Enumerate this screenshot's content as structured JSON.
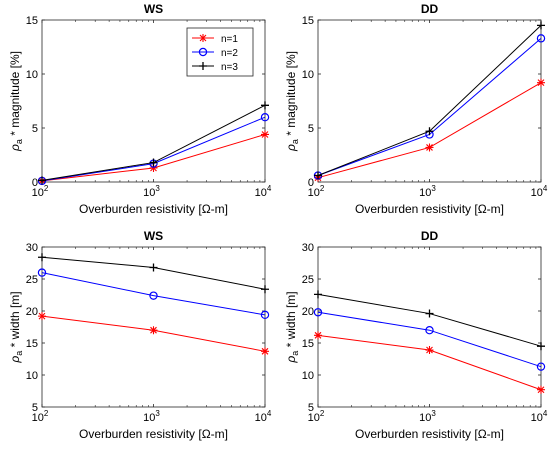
{
  "colors": {
    "n1": "#ff0000",
    "n2": "#0000ff",
    "n3": "#000000"
  },
  "legend": {
    "location": "top-right (first panel)"
  },
  "chart_data": [
    {
      "type": "line",
      "title": "WS",
      "xlabel": "Overburden resistivity [Ω-m]",
      "ylabel": "* magnitude [%]",
      "xscale": "log",
      "xlim": [
        100,
        10000
      ],
      "ylim": [
        0,
        15
      ],
      "yticks": [
        0,
        5,
        10,
        15
      ],
      "xticks": [
        {
          "base": "10",
          "exp": "2",
          "value": 100
        },
        {
          "base": "10",
          "exp": "3",
          "value": 1000
        },
        {
          "base": "10",
          "exp": "4",
          "value": 10000
        }
      ],
      "x": [
        100,
        1000,
        10000
      ],
      "series": [
        {
          "name": "n=1",
          "marker": "asterisk",
          "values": [
            0.1,
            1.3,
            4.4
          ]
        },
        {
          "name": "n=2",
          "marker": "circle",
          "values": [
            0.1,
            1.7,
            6.0
          ]
        },
        {
          "name": "n=3",
          "marker": "plus",
          "values": [
            0.15,
            1.8,
            7.1
          ]
        }
      ]
    },
    {
      "type": "line",
      "title": "DD",
      "xlabel": "Overburden resistivity [Ω-m]",
      "ylabel": "* magnitude [%]",
      "xscale": "log",
      "xlim": [
        100,
        10000
      ],
      "ylim": [
        0,
        15
      ],
      "yticks": [
        0,
        5,
        10,
        15
      ],
      "xticks": [
        {
          "base": "10",
          "exp": "2",
          "value": 100
        },
        {
          "base": "10",
          "exp": "3",
          "value": 1000
        },
        {
          "base": "10",
          "exp": "4",
          "value": 10000
        }
      ],
      "x": [
        100,
        1000,
        10000
      ],
      "series": [
        {
          "name": "n=1",
          "marker": "asterisk",
          "values": [
            0.4,
            3.2,
            9.2
          ]
        },
        {
          "name": "n=2",
          "marker": "circle",
          "values": [
            0.6,
            4.4,
            13.3
          ]
        },
        {
          "name": "n=3",
          "marker": "plus",
          "values": [
            0.6,
            4.7,
            14.5
          ]
        }
      ]
    },
    {
      "type": "line",
      "title": "WS",
      "xlabel": "Overburden resistivity [Ω-m]",
      "ylabel": "* width [m]",
      "xscale": "log",
      "xlim": [
        100,
        10000
      ],
      "ylim": [
        5,
        30
      ],
      "yticks": [
        5,
        10,
        15,
        20,
        25,
        30
      ],
      "xticks": [
        {
          "base": "10",
          "exp": "2",
          "value": 100
        },
        {
          "base": "10",
          "exp": "3",
          "value": 1000
        },
        {
          "base": "10",
          "exp": "4",
          "value": 10000
        }
      ],
      "x": [
        100,
        1000,
        10000
      ],
      "series": [
        {
          "name": "n=1",
          "marker": "asterisk",
          "values": [
            19.2,
            17.0,
            13.7
          ]
        },
        {
          "name": "n=2",
          "marker": "circle",
          "values": [
            26.0,
            22.4,
            19.4
          ]
        },
        {
          "name": "n=3",
          "marker": "plus",
          "values": [
            28.4,
            26.8,
            23.4
          ]
        }
      ]
    },
    {
      "type": "line",
      "title": "DD",
      "xlabel": "Overburden resistivity [Ω-m]",
      "ylabel": "* width [m]",
      "xscale": "log",
      "xlim": [
        100,
        10000
      ],
      "ylim": [
        5,
        30
      ],
      "yticks": [
        5,
        10,
        15,
        20,
        25,
        30
      ],
      "xticks": [
        {
          "base": "10",
          "exp": "2",
          "value": 100
        },
        {
          "base": "10",
          "exp": "3",
          "value": 1000
        },
        {
          "base": "10",
          "exp": "4",
          "value": 10000
        }
      ],
      "x": [
        100,
        1000,
        10000
      ],
      "series": [
        {
          "name": "n=1",
          "marker": "asterisk",
          "values": [
            16.2,
            13.9,
            7.7
          ]
        },
        {
          "name": "n=2",
          "marker": "circle",
          "values": [
            19.8,
            17.0,
            11.3
          ]
        },
        {
          "name": "n=3",
          "marker": "plus",
          "values": [
            22.6,
            19.6,
            14.5
          ]
        }
      ]
    }
  ]
}
